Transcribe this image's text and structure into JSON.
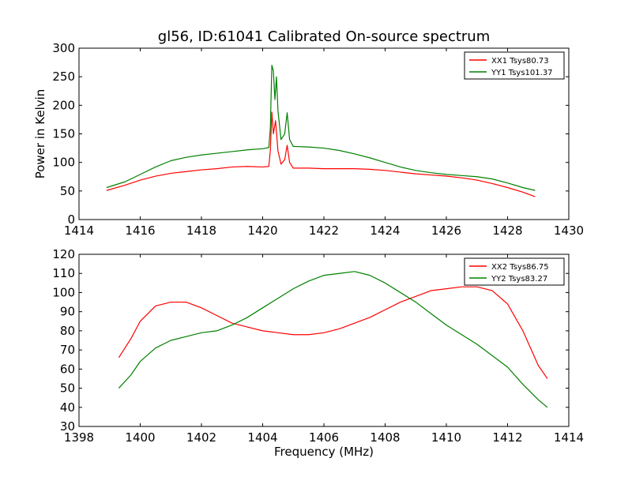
{
  "figure": {
    "title": "gl56, ID:61041 Calibrated On-source spectrum"
  },
  "chart_data": [
    {
      "type": "line",
      "title": "gl56, ID:61041 Calibrated On-source spectrum",
      "xlabel": "",
      "ylabel": "Power in Kelvin",
      "xlim": [
        1414,
        1430
      ],
      "ylim": [
        0,
        300
      ],
      "xticks": [
        1414,
        1416,
        1418,
        1420,
        1422,
        1424,
        1426,
        1428,
        1430
      ],
      "yticks": [
        0,
        50,
        100,
        150,
        200,
        250,
        300
      ],
      "grid": false,
      "legend_position": "top-right",
      "series": [
        {
          "name": "XX1 Tsys80.73",
          "color": "#ff0000",
          "points": [
            [
              1414.9,
              51
            ],
            [
              1415.5,
              60
            ],
            [
              1416,
              69
            ],
            [
              1416.5,
              76
            ],
            [
              1417,
              81
            ],
            [
              1417.5,
              84
            ],
            [
              1418,
              87
            ],
            [
              1418.5,
              89
            ],
            [
              1419,
              92
            ],
            [
              1419.5,
              93
            ],
            [
              1420,
              92
            ],
            [
              1420.2,
              93
            ],
            [
              1420.25,
              120
            ],
            [
              1420.3,
              188
            ],
            [
              1420.35,
              150
            ],
            [
              1420.42,
              173
            ],
            [
              1420.5,
              120
            ],
            [
              1420.6,
              97
            ],
            [
              1420.72,
              105
            ],
            [
              1420.8,
              130
            ],
            [
              1420.88,
              100
            ],
            [
              1421,
              90
            ],
            [
              1421.5,
              90
            ],
            [
              1422,
              89
            ],
            [
              1422.5,
              89
            ],
            [
              1423,
              89
            ],
            [
              1423.5,
              88
            ],
            [
              1424,
              86
            ],
            [
              1424.5,
              83
            ],
            [
              1425,
              80
            ],
            [
              1425.5,
              78
            ],
            [
              1426,
              76
            ],
            [
              1426.5,
              73
            ],
            [
              1427,
              69
            ],
            [
              1427.5,
              63
            ],
            [
              1428,
              56
            ],
            [
              1428.5,
              48
            ],
            [
              1428.9,
              40
            ]
          ]
        },
        {
          "name": "YY1 Tsys101.37",
          "color": "#008000",
          "points": [
            [
              1414.9,
              56
            ],
            [
              1415.5,
              66
            ],
            [
              1416,
              79
            ],
            [
              1416.5,
              92
            ],
            [
              1417,
              103
            ],
            [
              1417.5,
              109
            ],
            [
              1418,
              113
            ],
            [
              1418.5,
              116
            ],
            [
              1419,
              119
            ],
            [
              1419.5,
              122
            ],
            [
              1420,
              124
            ],
            [
              1420.2,
              126
            ],
            [
              1420.25,
              160
            ],
            [
              1420.3,
              270
            ],
            [
              1420.35,
              260
            ],
            [
              1420.4,
              210
            ],
            [
              1420.45,
              250
            ],
            [
              1420.5,
              190
            ],
            [
              1420.6,
              140
            ],
            [
              1420.72,
              150
            ],
            [
              1420.8,
              187
            ],
            [
              1420.88,
              140
            ],
            [
              1421,
              128
            ],
            [
              1421.5,
              127
            ],
            [
              1422,
              125
            ],
            [
              1422.5,
              121
            ],
            [
              1423,
              115
            ],
            [
              1423.5,
              108
            ],
            [
              1424,
              100
            ],
            [
              1424.5,
              92
            ],
            [
              1425,
              86
            ],
            [
              1425.5,
              82
            ],
            [
              1426,
              79
            ],
            [
              1426.5,
              77
            ],
            [
              1427,
              75
            ],
            [
              1427.5,
              71
            ],
            [
              1428,
              64
            ],
            [
              1428.5,
              56
            ],
            [
              1428.9,
              51
            ]
          ]
        }
      ]
    },
    {
      "type": "line",
      "title": "",
      "xlabel": "Frequency (MHz)",
      "ylabel": "",
      "xlim": [
        1398,
        1414
      ],
      "ylim": [
        30,
        120
      ],
      "xticks": [
        1398,
        1400,
        1402,
        1404,
        1406,
        1408,
        1410,
        1412,
        1414
      ],
      "yticks": [
        30,
        40,
        50,
        60,
        70,
        80,
        90,
        100,
        110,
        120
      ],
      "grid": false,
      "legend_position": "top-right",
      "series": [
        {
          "name": "XX2 Tsys86.75",
          "color": "#ff0000",
          "points": [
            [
              1399.3,
              66
            ],
            [
              1399.7,
              76
            ],
            [
              1400,
              85
            ],
            [
              1400.5,
              93
            ],
            [
              1401,
              95
            ],
            [
              1401.5,
              95
            ],
            [
              1402,
              92
            ],
            [
              1402.5,
              88
            ],
            [
              1403,
              84
            ],
            [
              1403.5,
              82
            ],
            [
              1404,
              80
            ],
            [
              1404.5,
              79
            ],
            [
              1405,
              78
            ],
            [
              1405.5,
              78
            ],
            [
              1406,
              79
            ],
            [
              1406.5,
              81
            ],
            [
              1407,
              84
            ],
            [
              1407.5,
              87
            ],
            [
              1408,
              91
            ],
            [
              1408.5,
              95
            ],
            [
              1409,
              98
            ],
            [
              1409.5,
              101
            ],
            [
              1410,
              102
            ],
            [
              1410.5,
              103
            ],
            [
              1411,
              103
            ],
            [
              1411.5,
              101
            ],
            [
              1412,
              94
            ],
            [
              1412.5,
              80
            ],
            [
              1413,
              62
            ],
            [
              1413.3,
              55
            ]
          ]
        },
        {
          "name": "YY2 Tsys83.27",
          "color": "#008000",
          "points": [
            [
              1399.3,
              50
            ],
            [
              1399.7,
              57
            ],
            [
              1400,
              64
            ],
            [
              1400.5,
              71
            ],
            [
              1401,
              75
            ],
            [
              1401.5,
              77
            ],
            [
              1402,
              79
            ],
            [
              1402.5,
              80
            ],
            [
              1403,
              83
            ],
            [
              1403.5,
              87
            ],
            [
              1404,
              92
            ],
            [
              1404.5,
              97
            ],
            [
              1405,
              102
            ],
            [
              1405.5,
              106
            ],
            [
              1406,
              109
            ],
            [
              1406.5,
              110
            ],
            [
              1407,
              111
            ],
            [
              1407.5,
              109
            ],
            [
              1408,
              105
            ],
            [
              1408.5,
              100
            ],
            [
              1409,
              95
            ],
            [
              1409.5,
              89
            ],
            [
              1410,
              83
            ],
            [
              1410.5,
              78
            ],
            [
              1411,
              73
            ],
            [
              1411.5,
              67
            ],
            [
              1412,
              61
            ],
            [
              1412.5,
              52
            ],
            [
              1413,
              44
            ],
            [
              1413.3,
              40
            ]
          ]
        }
      ]
    }
  ]
}
